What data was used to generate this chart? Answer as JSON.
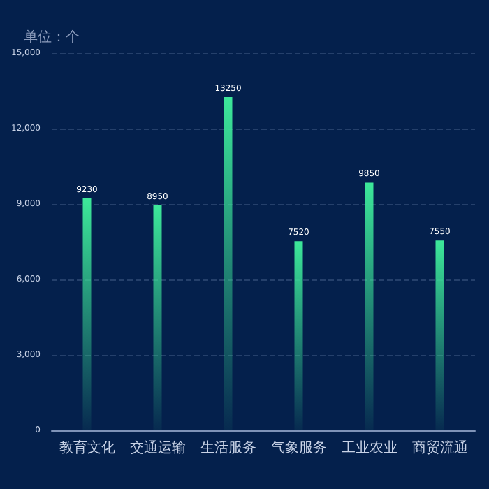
{
  "chart_data": {
    "type": "bar",
    "ylabel": "单位：个",
    "categories": [
      "教育文化",
      "交通运输",
      "生活服务",
      "气象服务",
      "工业农业",
      "商贸流通"
    ],
    "values": [
      9230,
      8950,
      13250,
      7520,
      9850,
      7550
    ],
    "color": "#3de89a",
    "ylim": [
      0,
      15000
    ],
    "yticks": [
      {
        "value": 0,
        "label": "0"
      },
      {
        "value": 3000,
        "label": "3,000"
      },
      {
        "value": 6000,
        "label": "6,000"
      },
      {
        "value": 9000,
        "label": "9,000"
      },
      {
        "value": 12000,
        "label": "12,000"
      },
      {
        "value": 15000,
        "label": "15,000"
      }
    ],
    "grid": "y",
    "data_labels": true
  }
}
